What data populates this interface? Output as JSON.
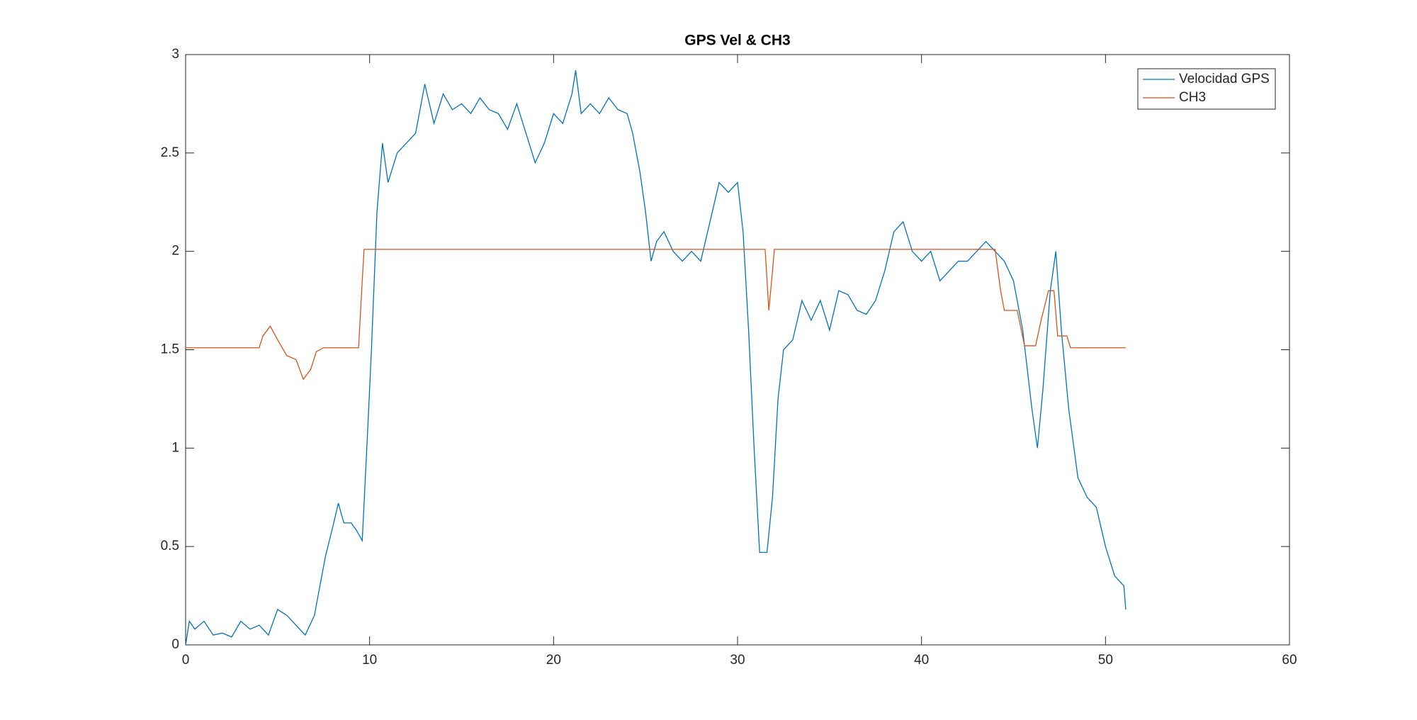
{
  "chart_data": {
    "type": "line",
    "title": "GPS Vel & CH3",
    "xlim": [
      0,
      60
    ],
    "xticks": [
      0,
      10,
      20,
      30,
      40,
      50,
      60
    ],
    "ylim": [
      0,
      3
    ],
    "yticks": [
      0,
      0.5,
      1,
      1.5,
      2,
      2.5,
      3
    ],
    "legend": "upper right",
    "series": [
      {
        "name": "Velocidad GPS",
        "color": "#0072bd",
        "x": [
          0,
          0.2,
          0.5,
          1,
          1.5,
          2,
          2.5,
          3,
          3.5,
          4,
          4.5,
          5,
          5.5,
          6,
          6.5,
          7,
          7.3,
          7.6,
          8,
          8.3,
          8.6,
          9,
          9.3,
          9.6,
          9.9,
          10.1,
          10.4,
          10.7,
          11,
          11.5,
          12,
          12.5,
          13,
          13.5,
          14,
          14.5,
          15,
          15.5,
          16,
          16.5,
          17,
          17.5,
          18,
          18.5,
          19,
          19.5,
          20,
          20.5,
          21,
          21.2,
          21.5,
          22,
          22.5,
          23,
          23.5,
          24,
          24.3,
          24.7,
          25,
          25.3,
          25.6,
          26,
          26.5,
          27,
          27.5,
          28,
          28.5,
          29,
          29.5,
          30,
          30.3,
          30.6,
          30.9,
          31.2,
          31.6,
          31.9,
          32.2,
          32.5,
          33,
          33.5,
          34,
          34.5,
          35,
          35.5,
          36,
          36.5,
          37,
          37.5,
          38,
          38.5,
          39,
          39.5,
          40,
          40.5,
          41,
          41.5,
          42,
          42.5,
          43,
          43.5,
          44,
          44.5,
          45,
          45.5,
          46,
          46.3,
          46.6,
          47,
          47.3,
          47.6,
          48,
          48.5,
          49,
          49.5,
          50,
          50.5,
          51,
          51.1
        ],
        "values": [
          0,
          0.12,
          0.08,
          0.12,
          0.05,
          0.06,
          0.04,
          0.12,
          0.08,
          0.1,
          0.05,
          0.18,
          0.15,
          0.1,
          0.05,
          0.15,
          0.3,
          0.45,
          0.6,
          0.72,
          0.62,
          0.62,
          0.58,
          0.53,
          1.1,
          1.5,
          2.2,
          2.55,
          2.35,
          2.5,
          2.55,
          2.6,
          2.85,
          2.65,
          2.8,
          2.72,
          2.75,
          2.7,
          2.78,
          2.72,
          2.7,
          2.62,
          2.75,
          2.6,
          2.45,
          2.55,
          2.7,
          2.65,
          2.8,
          2.92,
          2.7,
          2.75,
          2.7,
          2.78,
          2.72,
          2.7,
          2.6,
          2.4,
          2.2,
          1.95,
          2.05,
          2.1,
          2.0,
          1.95,
          2.0,
          1.95,
          2.15,
          2.35,
          2.3,
          2.35,
          2.1,
          1.6,
          1.0,
          0.47,
          0.47,
          0.75,
          1.25,
          1.5,
          1.55,
          1.75,
          1.65,
          1.75,
          1.6,
          1.8,
          1.78,
          1.7,
          1.68,
          1.75,
          1.9,
          2.1,
          2.15,
          2.0,
          1.95,
          2.0,
          1.85,
          1.9,
          1.95,
          1.95,
          2.0,
          2.05,
          2.0,
          1.95,
          1.85,
          1.6,
          1.2,
          1.0,
          1.3,
          1.8,
          2.0,
          1.6,
          1.2,
          0.85,
          0.75,
          0.7,
          0.5,
          0.35,
          0.3,
          0.18
        ]
      },
      {
        "name": "CH3",
        "color": "#d95319",
        "x": [
          0,
          4,
          4.2,
          4.6,
          5,
          5.5,
          6,
          6.4,
          6.8,
          7.1,
          7.5,
          9.4,
          9.6,
          9.7,
          31.5,
          31.7,
          31.9,
          32,
          44,
          44.3,
          44.5,
          45.2,
          45.6,
          46.2,
          46.5,
          46.9,
          47.2,
          47.4,
          47.9,
          48.1,
          51.1
        ],
        "values": [
          1.51,
          1.51,
          1.57,
          1.62,
          1.55,
          1.47,
          1.45,
          1.35,
          1.4,
          1.49,
          1.51,
          1.51,
          1.85,
          2.01,
          2.01,
          1.7,
          1.9,
          2.01,
          2.01,
          1.8,
          1.7,
          1.7,
          1.52,
          1.52,
          1.65,
          1.8,
          1.8,
          1.57,
          1.57,
          1.51,
          1.51
        ]
      }
    ]
  }
}
